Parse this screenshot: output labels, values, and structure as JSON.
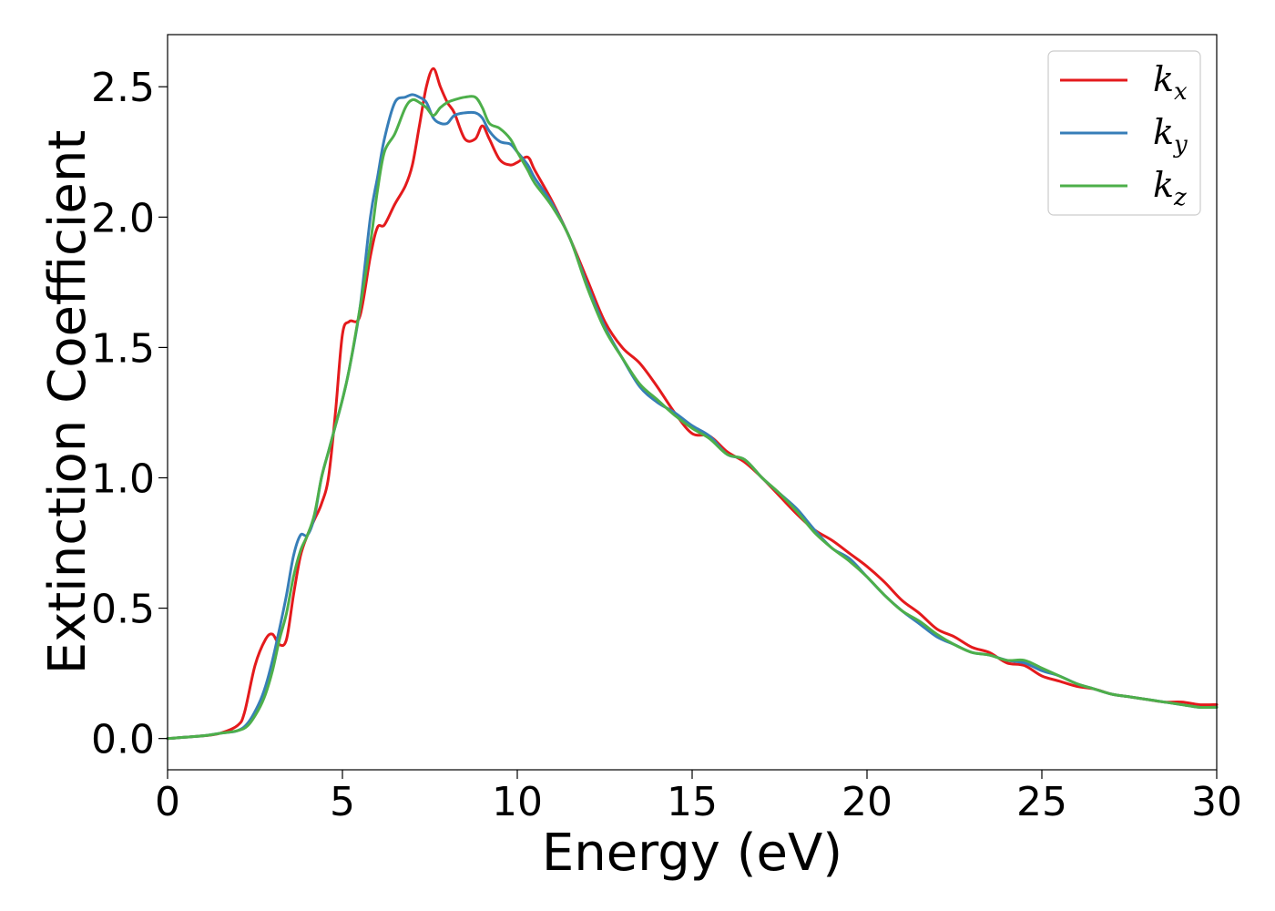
{
  "chart_data": {
    "type": "line",
    "title": "",
    "xlabel": "Energy (eV)",
    "ylabel": "Extinction Coefficient",
    "xlim": [
      0,
      30
    ],
    "ylim": [
      -0.12,
      2.7
    ],
    "xticks": [
      0,
      5,
      10,
      15,
      20,
      25,
      30
    ],
    "yticks": [
      0.0,
      0.5,
      1.0,
      1.5,
      2.0,
      2.5
    ],
    "xtick_labels": [
      "0",
      "5",
      "10",
      "15",
      "20",
      "25",
      "30"
    ],
    "ytick_labels": [
      "0.0",
      "0.5",
      "1.0",
      "1.5",
      "2.0",
      "2.5"
    ],
    "grid": false,
    "legend_position": "top-right",
    "series": [
      {
        "name": "k_x",
        "label_base": "k",
        "label_sub": "x",
        "color": "#e41a1c",
        "x": [
          0,
          1,
          1.5,
          2.0,
          2.2,
          2.5,
          2.8,
          3.0,
          3.2,
          3.4,
          3.6,
          3.8,
          4.0,
          4.2,
          4.4,
          4.6,
          4.8,
          5.0,
          5.2,
          5.5,
          5.8,
          6.0,
          6.2,
          6.5,
          6.8,
          7.0,
          7.2,
          7.4,
          7.6,
          7.8,
          8.0,
          8.2,
          8.5,
          8.8,
          9.0,
          9.2,
          9.5,
          9.8,
          10.0,
          10.3,
          10.5,
          11.0,
          11.5,
          12.0,
          12.5,
          13.0,
          13.5,
          14.0,
          14.5,
          15.0,
          15.5,
          16.0,
          16.5,
          17.0,
          17.5,
          18.0,
          18.5,
          19.0,
          19.5,
          20.0,
          20.5,
          21.0,
          21.5,
          22.0,
          22.5,
          23.0,
          23.5,
          24.0,
          24.5,
          25.0,
          25.5,
          26.0,
          26.5,
          27.0,
          27.5,
          28.0,
          28.5,
          29.0,
          29.5,
          30.0
        ],
        "y": [
          0.0,
          0.01,
          0.02,
          0.05,
          0.1,
          0.28,
          0.38,
          0.4,
          0.36,
          0.38,
          0.55,
          0.7,
          0.78,
          0.84,
          0.9,
          1.0,
          1.25,
          1.55,
          1.6,
          1.62,
          1.85,
          1.96,
          1.97,
          2.05,
          2.12,
          2.2,
          2.35,
          2.5,
          2.57,
          2.5,
          2.44,
          2.4,
          2.3,
          2.3,
          2.35,
          2.3,
          2.22,
          2.2,
          2.21,
          2.23,
          2.18,
          2.06,
          1.92,
          1.76,
          1.6,
          1.5,
          1.44,
          1.35,
          1.25,
          1.17,
          1.16,
          1.1,
          1.06,
          1.0,
          0.93,
          0.86,
          0.8,
          0.76,
          0.71,
          0.66,
          0.6,
          0.53,
          0.48,
          0.42,
          0.39,
          0.35,
          0.33,
          0.29,
          0.28,
          0.24,
          0.22,
          0.2,
          0.19,
          0.17,
          0.16,
          0.15,
          0.14,
          0.14,
          0.13,
          0.13
        ]
      },
      {
        "name": "k_y",
        "label_base": "k",
        "label_sub": "y",
        "color": "#377eb8",
        "x": [
          0,
          1,
          1.5,
          2.0,
          2.3,
          2.6,
          2.8,
          3.0,
          3.2,
          3.4,
          3.6,
          3.8,
          4.0,
          4.2,
          4.4,
          4.6,
          4.8,
          5.0,
          5.2,
          5.5,
          5.8,
          6.0,
          6.2,
          6.5,
          6.8,
          7.0,
          7.2,
          7.4,
          7.6,
          7.8,
          8.0,
          8.2,
          8.5,
          8.8,
          9.0,
          9.2,
          9.5,
          9.8,
          10.0,
          10.3,
          10.5,
          11.0,
          11.5,
          12.0,
          12.5,
          13.0,
          13.5,
          14.0,
          14.5,
          15.0,
          15.5,
          16.0,
          16.5,
          17.0,
          17.5,
          18.0,
          18.5,
          19.0,
          19.5,
          20.0,
          20.5,
          21.0,
          21.5,
          22.0,
          22.5,
          23.0,
          23.5,
          24.0,
          24.5,
          25.0,
          25.5,
          26.0,
          26.5,
          27.0,
          27.5,
          28.0,
          28.5,
          29.0,
          29.5,
          30.0
        ],
        "y": [
          0.0,
          0.01,
          0.02,
          0.03,
          0.06,
          0.13,
          0.2,
          0.3,
          0.42,
          0.55,
          0.7,
          0.78,
          0.78,
          0.85,
          1.0,
          1.1,
          1.2,
          1.3,
          1.42,
          1.65,
          2.0,
          2.15,
          2.3,
          2.44,
          2.46,
          2.47,
          2.46,
          2.44,
          2.38,
          2.36,
          2.36,
          2.39,
          2.4,
          2.4,
          2.38,
          2.33,
          2.29,
          2.28,
          2.25,
          2.2,
          2.15,
          2.05,
          1.92,
          1.74,
          1.58,
          1.46,
          1.35,
          1.29,
          1.25,
          1.2,
          1.16,
          1.09,
          1.07,
          1.0,
          0.94,
          0.88,
          0.8,
          0.73,
          0.69,
          0.62,
          0.55,
          0.49,
          0.44,
          0.39,
          0.36,
          0.33,
          0.32,
          0.3,
          0.29,
          0.26,
          0.24,
          0.21,
          0.19,
          0.17,
          0.16,
          0.15,
          0.14,
          0.13,
          0.12,
          0.12
        ]
      },
      {
        "name": "k_z",
        "label_base": "k",
        "label_sub": "z",
        "color": "#4daf4a",
        "x": [
          0,
          1,
          1.5,
          2.0,
          2.3,
          2.6,
          2.8,
          3.0,
          3.2,
          3.4,
          3.6,
          3.8,
          4.0,
          4.2,
          4.4,
          4.6,
          4.8,
          5.0,
          5.2,
          5.5,
          5.8,
          6.0,
          6.2,
          6.5,
          6.8,
          7.0,
          7.2,
          7.4,
          7.6,
          7.8,
          8.0,
          8.2,
          8.5,
          8.8,
          9.0,
          9.2,
          9.5,
          9.8,
          10.0,
          10.3,
          10.5,
          11.0,
          11.5,
          12.0,
          12.5,
          13.0,
          13.5,
          14.0,
          14.5,
          15.0,
          15.5,
          16.0,
          16.5,
          17.0,
          17.5,
          18.0,
          18.5,
          19.0,
          19.5,
          20.0,
          20.5,
          21.0,
          21.5,
          22.0,
          22.5,
          23.0,
          23.5,
          24.0,
          24.5,
          25.0,
          25.5,
          26.0,
          26.5,
          27.0,
          27.5,
          28.0,
          28.5,
          29.0,
          29.5,
          30.0
        ],
        "y": [
          0.0,
          0.01,
          0.02,
          0.03,
          0.05,
          0.11,
          0.17,
          0.26,
          0.38,
          0.48,
          0.62,
          0.72,
          0.78,
          0.86,
          1.0,
          1.1,
          1.2,
          1.3,
          1.42,
          1.65,
          1.9,
          2.1,
          2.25,
          2.32,
          2.42,
          2.45,
          2.44,
          2.42,
          2.39,
          2.42,
          2.44,
          2.45,
          2.46,
          2.46,
          2.42,
          2.36,
          2.34,
          2.3,
          2.25,
          2.18,
          2.13,
          2.04,
          1.92,
          1.73,
          1.57,
          1.46,
          1.36,
          1.3,
          1.24,
          1.19,
          1.15,
          1.09,
          1.07,
          1.0,
          0.94,
          0.87,
          0.79,
          0.73,
          0.68,
          0.62,
          0.55,
          0.49,
          0.45,
          0.4,
          0.36,
          0.33,
          0.32,
          0.3,
          0.3,
          0.27,
          0.24,
          0.21,
          0.19,
          0.17,
          0.16,
          0.15,
          0.14,
          0.13,
          0.12,
          0.12
        ]
      }
    ]
  }
}
